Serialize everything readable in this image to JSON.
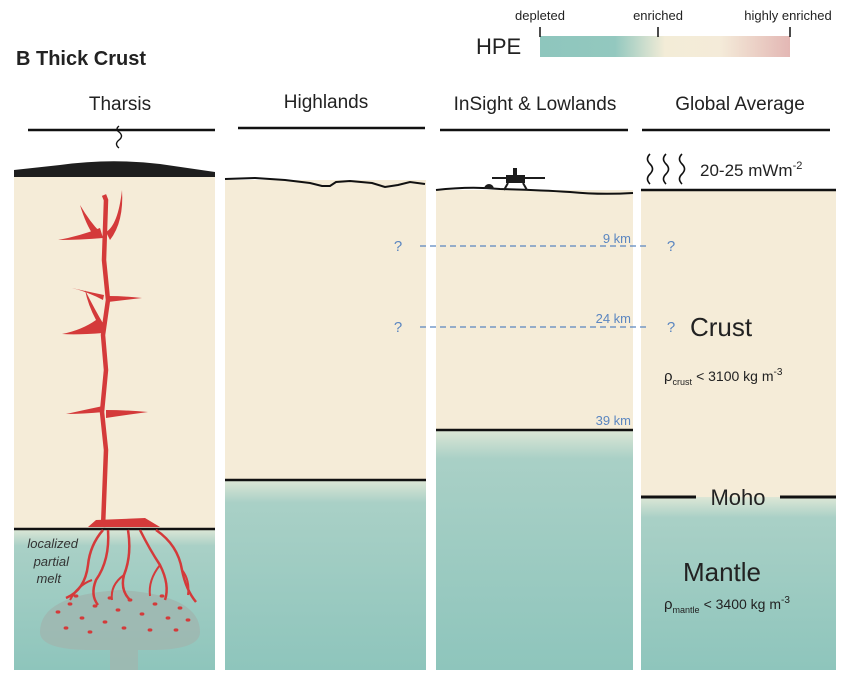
{
  "title": "B Thick Crust",
  "legend": {
    "label": "HPE",
    "ticks": [
      "depleted",
      "enriched",
      "highly enriched"
    ],
    "colors": [
      "#8ec6bd",
      "#f4ecd9",
      "#e3b7b4"
    ]
  },
  "columns": [
    {
      "label": "Tharsis"
    },
    {
      "label": "Highlands"
    },
    {
      "label": "InSight & Lowlands"
    },
    {
      "label": "Global Average"
    }
  ],
  "depths": {
    "d1": "9 km",
    "d2": "24 km",
    "d3": "39 km",
    "unknown": "?"
  },
  "annotations": {
    "melt_line1": "localized",
    "melt_line2": "partial",
    "melt_line3": "melt",
    "heat_flow": "20-25 mWm",
    "heat_flow_exp": "-2",
    "crust": "Crust",
    "rho": "ρ",
    "rho_crust_sub": "crust",
    "rho_crust_value": "< 3100 kg m",
    "rho_crust_exp": "-3",
    "moho": "Moho",
    "mantle": "Mantle",
    "rho_mantle_sub": "mantle",
    "rho_mantle_value": "< 3400 kg m",
    "rho_mantle_exp": "-3"
  },
  "colors": {
    "crust": "#f5ecd8",
    "mantle": "#93c8bf",
    "magma": "#d43a3a",
    "depth_label": "#5b86c0"
  }
}
